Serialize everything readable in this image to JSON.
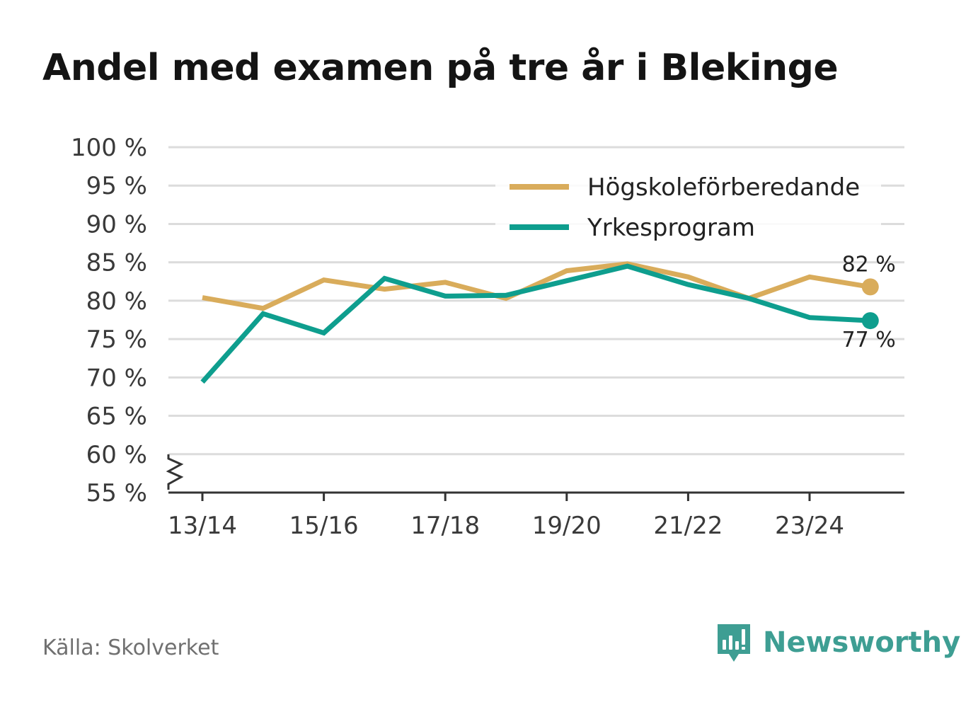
{
  "chart_data": {
    "type": "line",
    "title": "Andel med examen på tre år i Blekinge",
    "xlabel": "",
    "ylabel": "",
    "x": [
      "13/14",
      "14/15",
      "15/16",
      "16/17",
      "17/18",
      "18/19",
      "19/20",
      "20/21",
      "21/22",
      "22/23",
      "23/24",
      "24/25"
    ],
    "x_tick_labels": [
      "13/14",
      "15/16",
      "17/18",
      "19/20",
      "21/22",
      "23/24"
    ],
    "ylim": [
      55,
      100
    ],
    "y_ticks": [
      55,
      60,
      65,
      70,
      75,
      80,
      85,
      90,
      95,
      100
    ],
    "y_tick_labels": [
      "55 %",
      "60 %",
      "65 %",
      "70 %",
      "75 %",
      "80 %",
      "85 %",
      "90 %",
      "95 %",
      "100 %"
    ],
    "axis_break": true,
    "grid": true,
    "legend_position": "top-right",
    "series": [
      {
        "name": "Högskoleförberedande",
        "color": "#d9ac5b",
        "values": [
          80.4,
          79.0,
          82.7,
          81.5,
          82.4,
          80.3,
          83.9,
          84.8,
          83.1,
          80.3,
          83.1,
          81.8
        ],
        "end_label": "82 %"
      },
      {
        "name": "Yrkesprogram",
        "color": "#0e9e8e",
        "values": [
          69.4,
          78.3,
          75.8,
          82.9,
          80.6,
          80.7,
          82.6,
          84.5,
          82.1,
          80.3,
          77.8,
          77.4
        ],
        "end_label": "77 %"
      }
    ]
  },
  "source": "Källa: Skolverket",
  "brand": {
    "name": "Newsworthy",
    "icon": "newsworthy-logo-icon",
    "color": "#3e9e93"
  }
}
